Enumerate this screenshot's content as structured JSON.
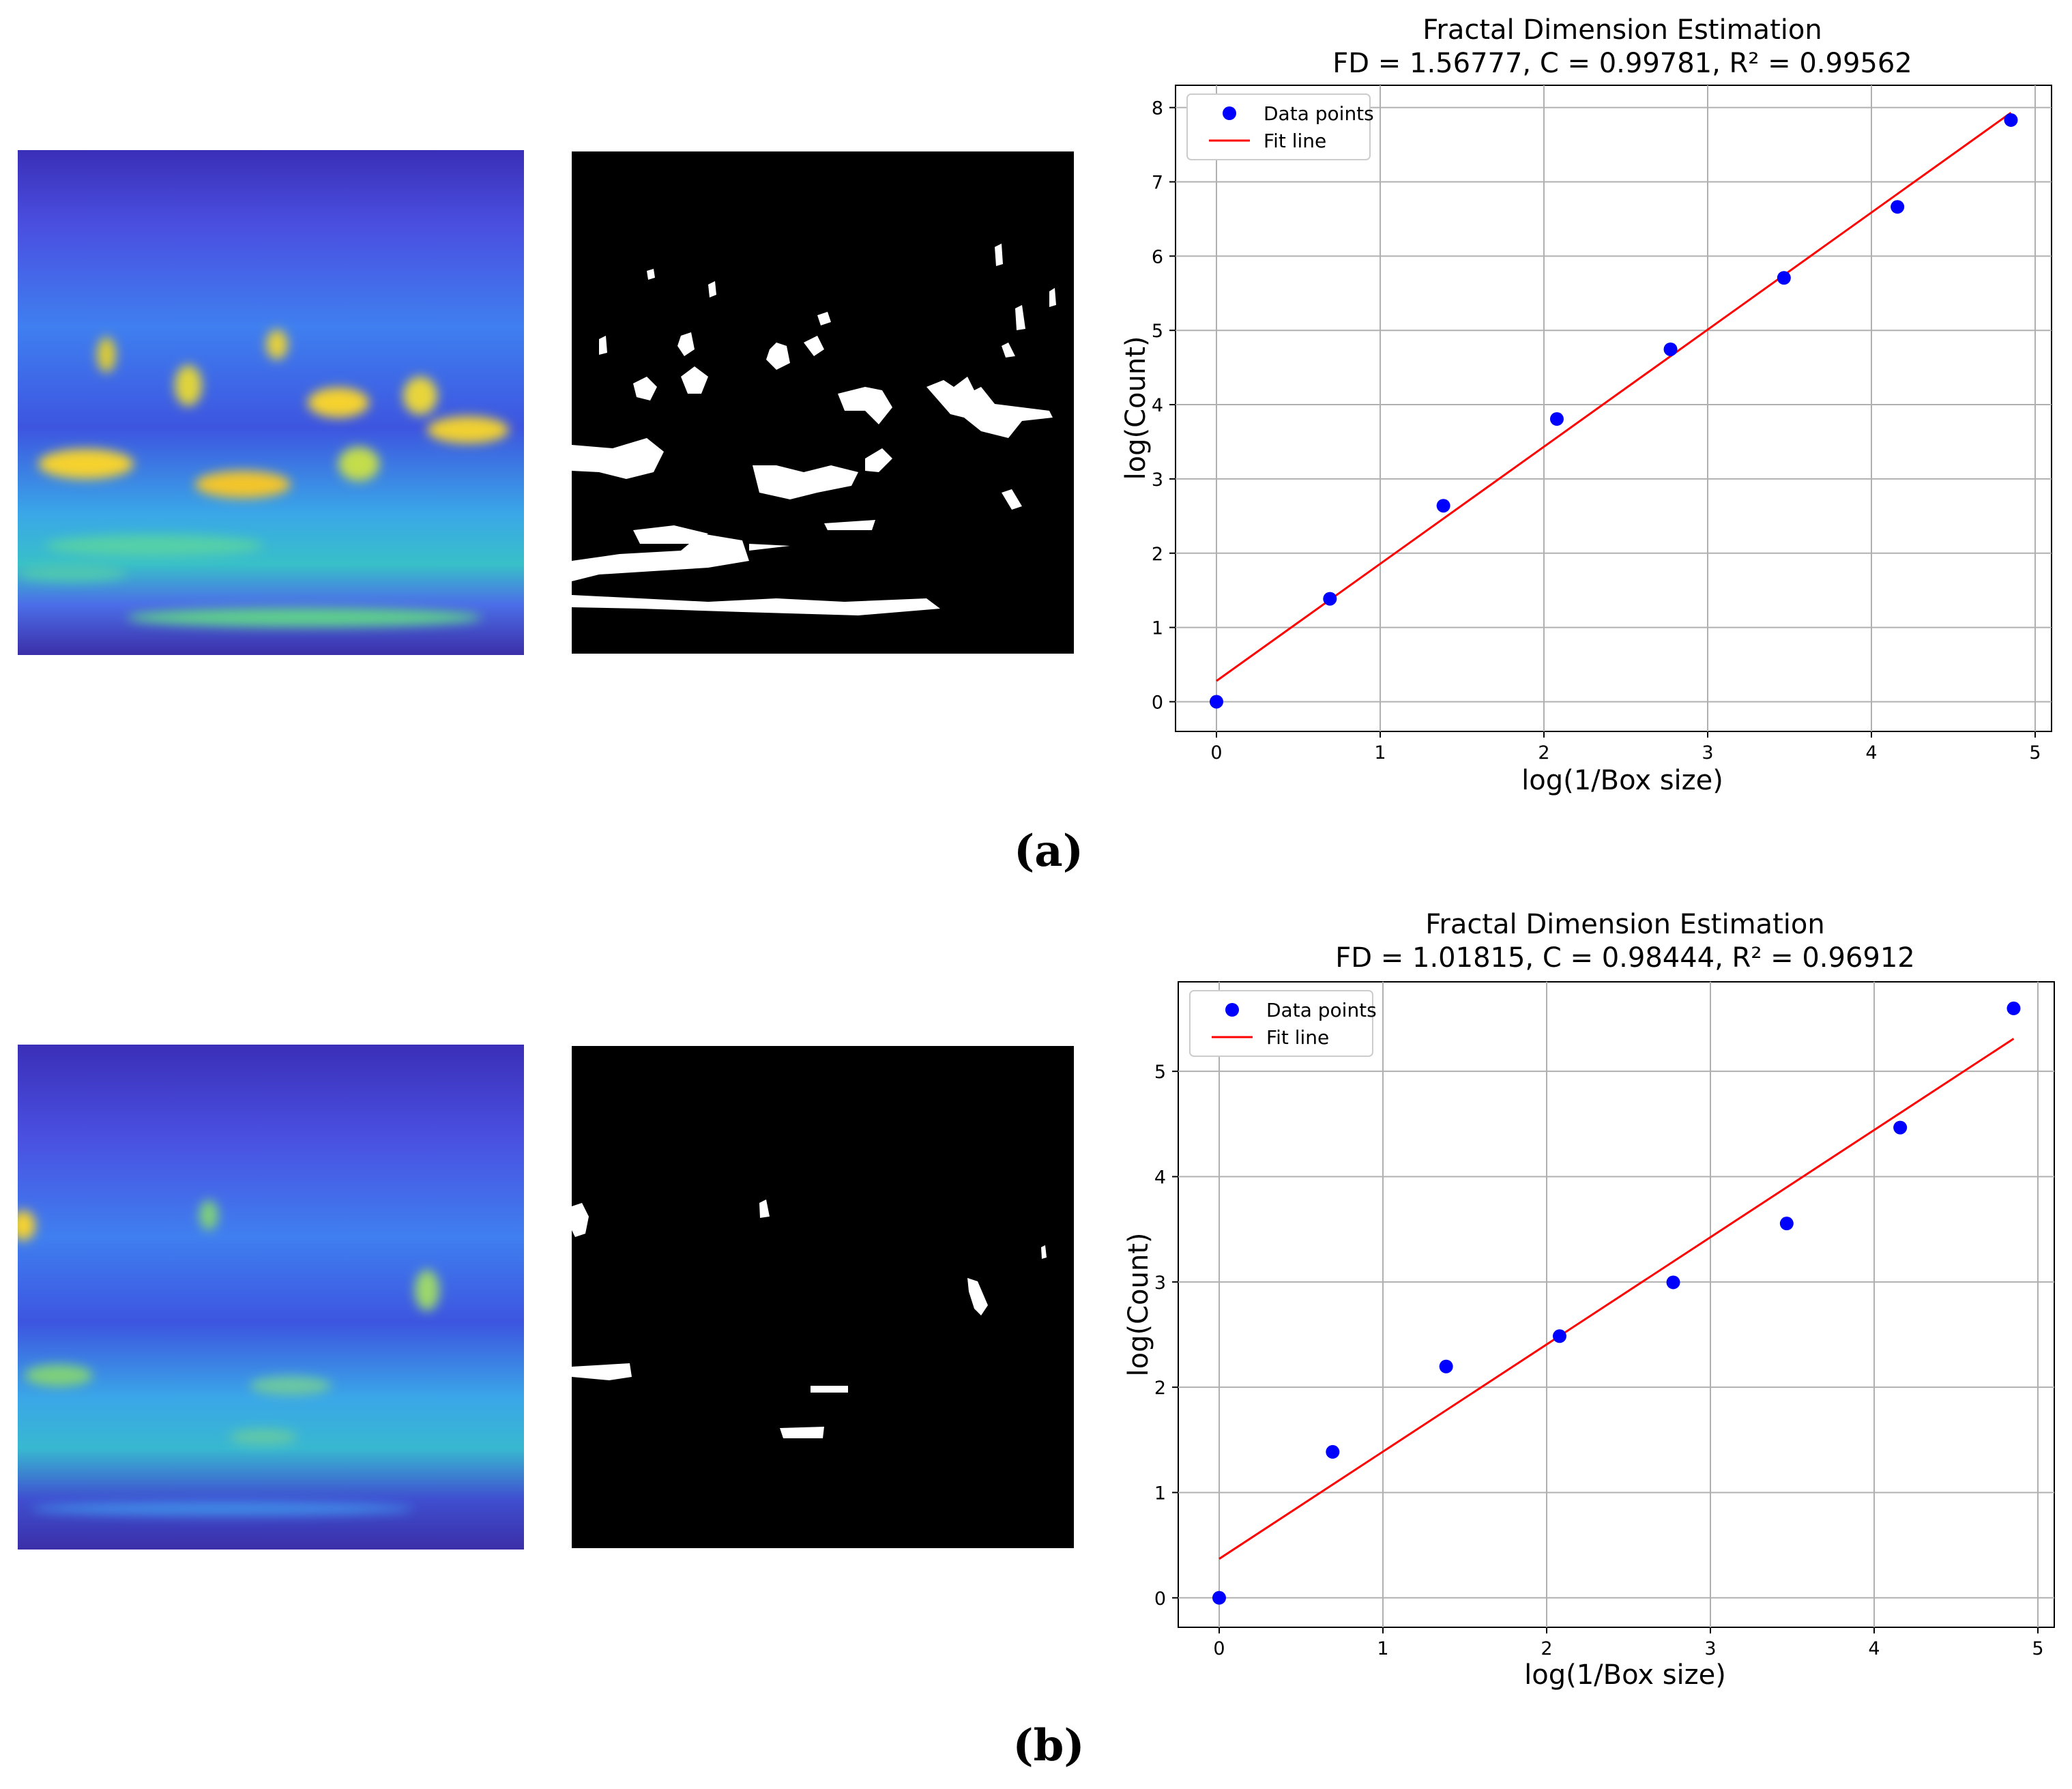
{
  "panels": [
    {
      "label": "(a)",
      "chart": {
        "title_line1": "Fractal Dimension Estimation",
        "title_line2": "FD = 1.56777, C = 0.99781, R² = 0.99562",
        "xlabel": "log(1/Box size)",
        "ylabel": "log(Count)",
        "legend": [
          "Data points",
          "Fit line"
        ],
        "xticks": [
          "0",
          "1",
          "2",
          "3",
          "4",
          "5"
        ],
        "yticks": [
          "0",
          "1",
          "2",
          "3",
          "4",
          "5",
          "6",
          "7",
          "8"
        ]
      }
    },
    {
      "label": "(b)",
      "chart": {
        "title_line1": "Fractal Dimension Estimation",
        "title_line2": "FD = 1.01815, C = 0.98444, R² = 0.96912",
        "xlabel": "log(1/Box size)",
        "ylabel": "log(Count)",
        "legend": [
          "Data points",
          "Fit line"
        ],
        "xticks": [
          "0",
          "1",
          "2",
          "3",
          "4",
          "5"
        ],
        "yticks": [
          "0",
          "1",
          "2",
          "3",
          "4",
          "5"
        ]
      }
    }
  ],
  "chart_data": [
    {
      "type": "scatter",
      "title": "Fractal Dimension Estimation\nFD = 1.56777, C = 0.99781, R² = 0.99562",
      "xlabel": "log(1/Box size)",
      "ylabel": "log(Count)",
      "xlim": [
        -0.25,
        5.1
      ],
      "ylim": [
        -0.4,
        8.3
      ],
      "grid": true,
      "legend_position": "top-left",
      "series": [
        {
          "name": "Data points",
          "kind": "scatter",
          "color": "#0000ff",
          "x": [
            0,
            0.693,
            1.386,
            2.079,
            2.773,
            3.466,
            4.159,
            4.852
          ],
          "y": [
            0,
            1.386,
            2.639,
            3.807,
            4.745,
            5.707,
            6.663,
            7.832
          ]
        },
        {
          "name": "Fit line",
          "kind": "line",
          "color": "#ff0000",
          "x": [
            0,
            4.852
          ],
          "y": [
            0.28,
            7.93
          ]
        }
      ]
    },
    {
      "type": "scatter",
      "title": "Fractal Dimension Estimation\nFD = 1.01815, C = 0.98444, R² = 0.96912",
      "xlabel": "log(1/Box size)",
      "ylabel": "log(Count)",
      "xlim": [
        -0.25,
        5.1
      ],
      "ylim": [
        -0.28,
        5.85
      ],
      "grid": true,
      "legend_position": "top-left",
      "series": [
        {
          "name": "Data points",
          "kind": "scatter",
          "color": "#0000ff",
          "x": [
            0,
            0.693,
            1.386,
            2.079,
            2.773,
            3.466,
            4.159,
            4.852
          ],
          "y": [
            0,
            1.386,
            2.197,
            2.485,
            2.996,
            3.555,
            4.466,
            5.598
          ]
        },
        {
          "name": "Fit line",
          "kind": "line",
          "color": "#ff0000",
          "x": [
            0,
            4.852
          ],
          "y": [
            0.37,
            5.31
          ]
        }
      ]
    }
  ]
}
